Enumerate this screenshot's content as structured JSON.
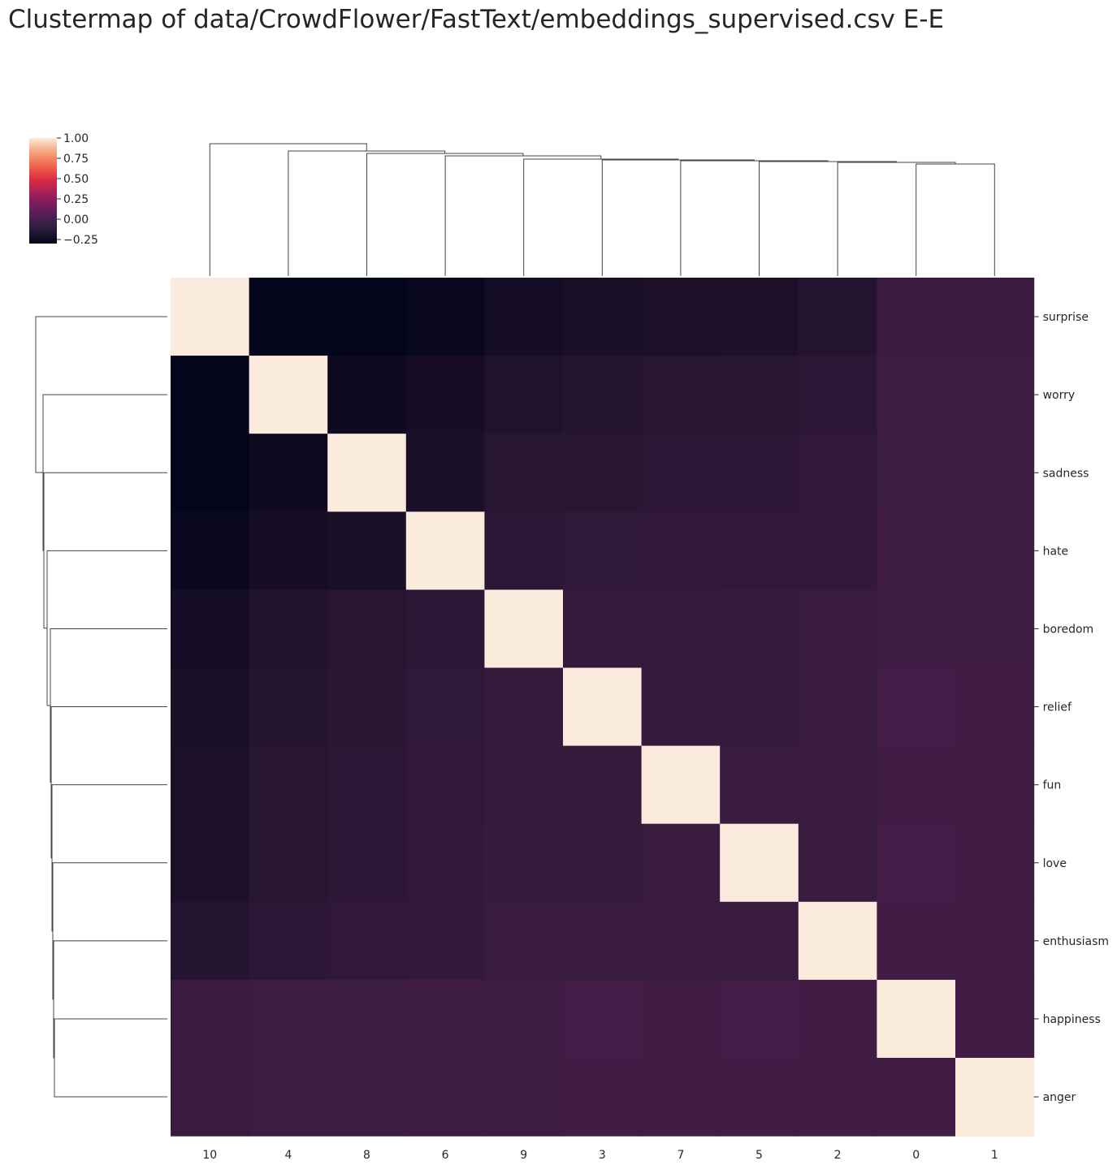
{
  "chart_data": {
    "type": "heatmap",
    "title": "Clustermap of data/CrowdFlower/FastText/embeddings_supervised.csv E-E",
    "row_labels": [
      "surprise",
      "worry",
      "sadness",
      "hate",
      "boredom",
      "relief",
      "fun",
      "love",
      "enthusiasm",
      "happiness",
      "anger"
    ],
    "col_labels": [
      "10",
      "4",
      "8",
      "6",
      "9",
      "3",
      "7",
      "5",
      "2",
      "0",
      "1"
    ],
    "values": [
      [
        1.0,
        -0.3,
        -0.3,
        -0.26,
        -0.2,
        -0.18,
        -0.17,
        -0.16,
        -0.12,
        0.0,
        0.0
      ],
      [
        -0.3,
        1.0,
        -0.24,
        -0.19,
        -0.14,
        -0.12,
        -0.1,
        -0.1,
        -0.07,
        0.01,
        0.01
      ],
      [
        -0.3,
        -0.24,
        1.0,
        -0.18,
        -0.1,
        -0.09,
        -0.07,
        -0.07,
        -0.05,
        0.01,
        0.01
      ],
      [
        -0.26,
        -0.19,
        -0.18,
        1.0,
        -0.07,
        -0.06,
        -0.05,
        -0.05,
        -0.04,
        0.02,
        0.02
      ],
      [
        -0.2,
        -0.14,
        -0.1,
        -0.07,
        1.0,
        -0.03,
        -0.03,
        -0.02,
        -0.01,
        0.02,
        0.02
      ],
      [
        -0.18,
        -0.12,
        -0.09,
        -0.06,
        -0.03,
        1.0,
        -0.02,
        -0.02,
        -0.01,
        0.04,
        0.03
      ],
      [
        -0.17,
        -0.1,
        -0.07,
        -0.05,
        -0.03,
        -0.02,
        1.0,
        -0.01,
        0.0,
        0.03,
        0.03
      ],
      [
        -0.16,
        -0.1,
        -0.07,
        -0.05,
        -0.02,
        -0.02,
        -0.01,
        1.0,
        0.0,
        0.04,
        0.03
      ],
      [
        -0.12,
        -0.07,
        -0.05,
        -0.04,
        -0.01,
        -0.01,
        0.0,
        0.0,
        1.0,
        0.03,
        0.03
      ],
      [
        0.0,
        0.01,
        0.01,
        0.02,
        0.02,
        0.04,
        0.03,
        0.04,
        0.03,
        1.0,
        0.03
      ],
      [
        0.0,
        0.01,
        0.01,
        0.02,
        0.02,
        0.03,
        0.03,
        0.03,
        0.03,
        0.03,
        1.0
      ]
    ],
    "colorbar": {
      "vmin": -0.3,
      "vmax": 1.0,
      "ticks": [
        "1.00",
        "0.75",
        "0.50",
        "0.25",
        "0.00",
        "−0.25"
      ]
    },
    "colormap": "rocket",
    "row_dendrogram": true,
    "col_dendrogram": true,
    "grid": false
  }
}
